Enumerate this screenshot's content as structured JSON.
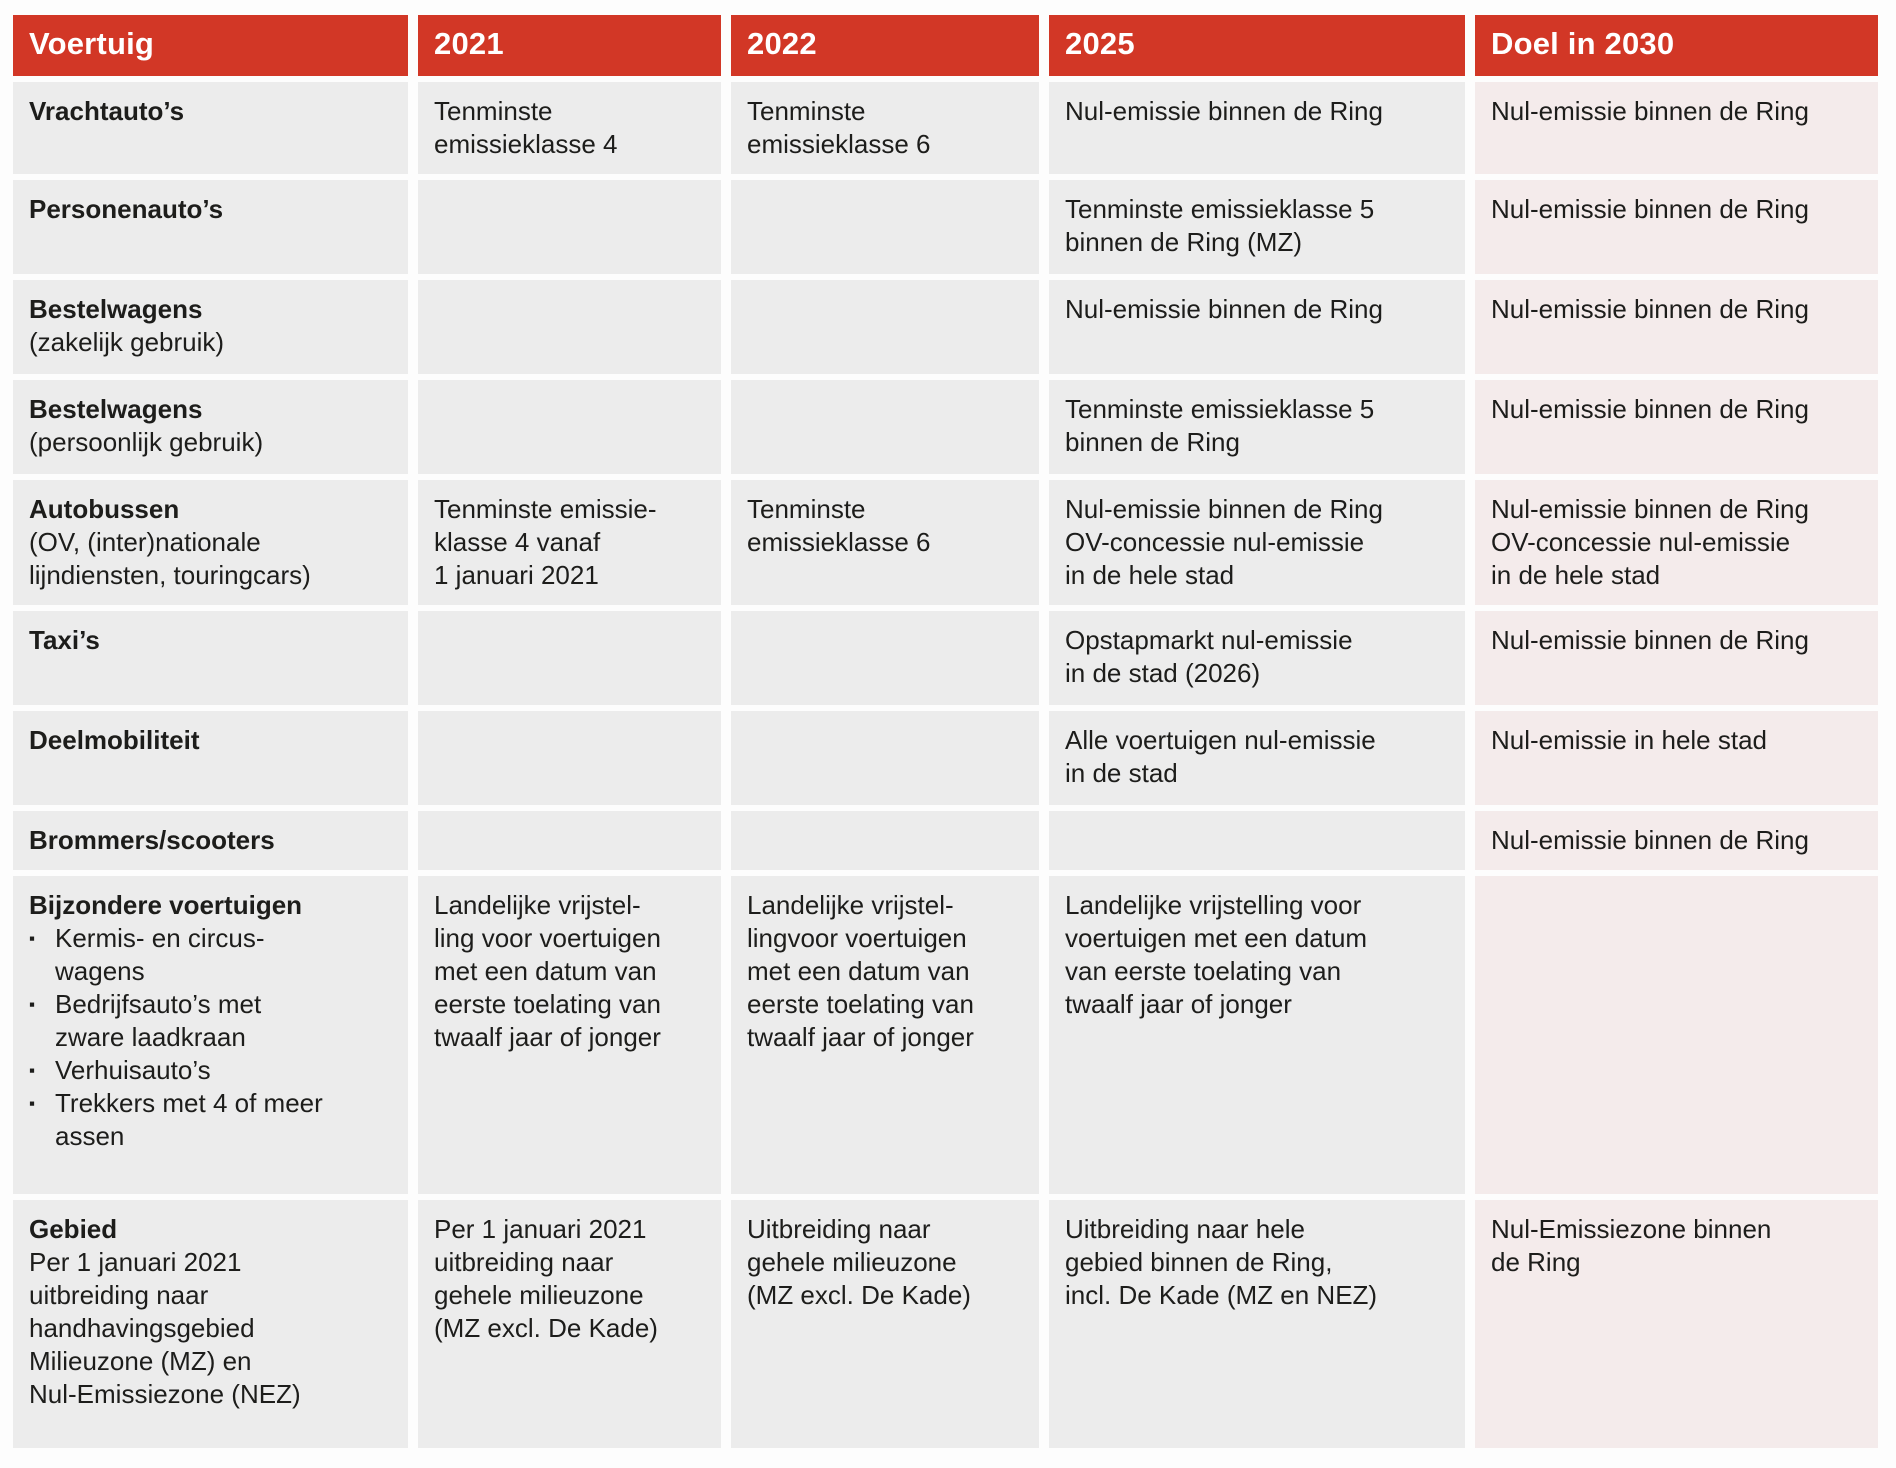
{
  "theme": {
    "header_bg": "#d23726",
    "header_text": "#ffffff",
    "cell_bg": "#ececec",
    "goal_column_bg": "#f4ebeb",
    "text_color": "#1d1d1b",
    "page_bg": "#fdfdfd"
  },
  "table": {
    "columns": [
      {
        "key": "voertuig",
        "label": "Voertuig"
      },
      {
        "key": "y2021",
        "label": "2021"
      },
      {
        "key": "y2022",
        "label": "2022"
      },
      {
        "key": "y2025",
        "label": "2025"
      },
      {
        "key": "doel2030",
        "label": "Doel in 2030"
      }
    ],
    "rows": [
      {
        "vehicle": {
          "title": "Vrachtauto’s",
          "subtitle": "",
          "bullets": []
        },
        "y2021": "Tenminste\nemissieklasse 4",
        "y2022": "Tenminste\nemissieklasse 6",
        "y2025": "Nul-emissie binnen de Ring",
        "doel2030": "Nul-emissie binnen de Ring"
      },
      {
        "vehicle": {
          "title": "Personenauto’s",
          "subtitle": "",
          "bullets": []
        },
        "y2021": "",
        "y2022": "",
        "y2025": "Tenminste emissieklasse 5\nbinnen de Ring (MZ)",
        "doel2030": "Nul-emissie binnen de Ring"
      },
      {
        "vehicle": {
          "title": "Bestelwagens",
          "subtitle": "(zakelijk gebruik)",
          "bullets": []
        },
        "y2021": "",
        "y2022": "",
        "y2025": "Nul-emissie binnen de Ring",
        "doel2030": "Nul-emissie binnen de Ring"
      },
      {
        "vehicle": {
          "title": "Bestelwagens",
          "subtitle": "(persoonlijk gebruik)",
          "bullets": []
        },
        "y2021": "",
        "y2022": "",
        "y2025": "Tenminste emissieklasse 5\nbinnen de Ring",
        "doel2030": "Nul-emissie binnen de Ring"
      },
      {
        "vehicle": {
          "title": "Autobussen",
          "subtitle": "(OV, (inter)nationale\nlijndiensten, touringcars)",
          "bullets": []
        },
        "y2021": "Tenminste emissie-\nklasse 4 vanaf\n1 januari 2021",
        "y2022": "Tenminste\nemissieklasse 6",
        "y2025": "Nul-emissie binnen de Ring\nOV-concessie nul-emissie\nin de hele stad",
        "doel2030": "Nul-emissie binnen de Ring\nOV-concessie nul-emissie\nin de hele stad"
      },
      {
        "vehicle": {
          "title": "Taxi’s",
          "subtitle": "",
          "bullets": []
        },
        "y2021": "",
        "y2022": "",
        "y2025": "Opstapmarkt nul-emissie\nin de stad (2026)",
        "doel2030": "Nul-emissie binnen de Ring"
      },
      {
        "vehicle": {
          "title": "Deelmobiliteit",
          "subtitle": "",
          "bullets": []
        },
        "y2021": "",
        "y2022": "",
        "y2025": "Alle voertuigen nul-emissie\nin de stad",
        "doel2030": "Nul-emissie in hele stad"
      },
      {
        "vehicle": {
          "title": "Brommers/scooters",
          "subtitle": "",
          "bullets": []
        },
        "y2021": "",
        "y2022": "",
        "y2025": "",
        "doel2030": "Nul-emissie binnen de Ring"
      },
      {
        "vehicle": {
          "title": "Bijzondere voertuigen",
          "subtitle": "",
          "bullets": [
            "Kermis- en circus-\nwagens",
            "Bedrijfsauto’s met\nzware laadkraan",
            "Verhuisauto’s",
            "Trekkers met 4 of meer\nassen"
          ]
        },
        "y2021": "Landelijke vrijstel-\nling voor voertuigen\nmet een datum van\neerste toelating van\ntwaalf jaar of jonger",
        "y2022": "Landelijke vrijstel-\nlingvoor voertuigen\nmet een datum van\neerste toelating van\ntwaalf jaar of jonger",
        "y2025": "Landelijke vrijstelling voor\nvoertuigen met een datum\nvan eerste toelating van\ntwaalf jaar of jonger",
        "doel2030": ""
      },
      {
        "vehicle": {
          "title": "Gebied",
          "subtitle": "Per 1 januari 2021\nuitbreiding naar\nhandhavingsgebied\nMilieuzone (MZ) en\nNul-Emissiezone (NEZ)",
          "bullets": []
        },
        "y2021": "Per 1 januari 2021\nuitbreiding naar\ngehele milieuzone\n(MZ excl. De Kade)",
        "y2022": "Uitbreiding naar\ngehele milieuzone\n(MZ excl. De Kade)",
        "y2025": "Uitbreiding naar hele\ngebied binnen de Ring,\nincl. De Kade (MZ en NEZ)",
        "doel2030": "Nul-Emissiezone binnen\nde Ring"
      }
    ]
  }
}
